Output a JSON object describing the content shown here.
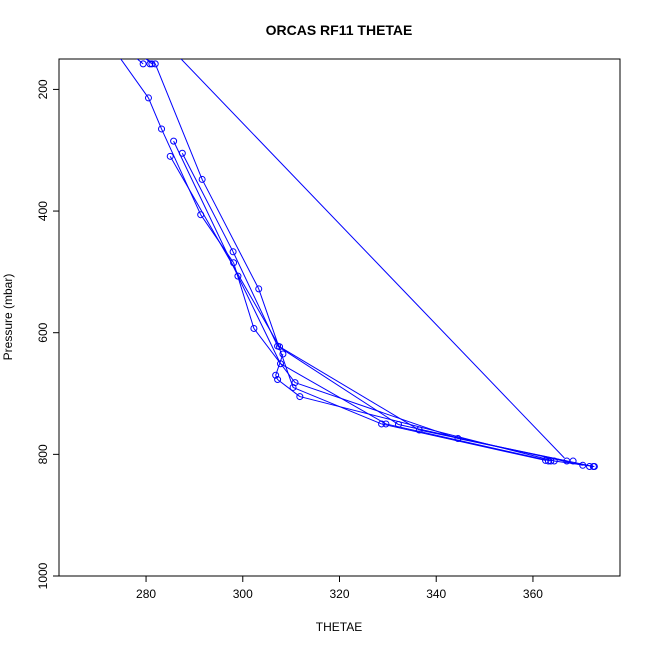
{
  "chart_data": {
    "type": "line",
    "title": "ORCAS RF11 THETAE",
    "xlabel": "THETAE",
    "ylabel": "Pressure (mbar)",
    "xlim": [
      262,
      378
    ],
    "ylim": [
      1000,
      150
    ],
    "y_reversed": true,
    "x_ticks": [
      280,
      300,
      320,
      340,
      360
    ],
    "y_ticks": [
      200,
      400,
      600,
      800,
      1000
    ],
    "series_color": "#0000ff",
    "points": [
      [
        281.9,
        158
      ],
      [
        280.5,
        214
      ],
      [
        283.2,
        265
      ],
      [
        285.7,
        285
      ],
      [
        287.5,
        305
      ],
      [
        285.0,
        310
      ],
      [
        291.6,
        348
      ],
      [
        291.3,
        406
      ],
      [
        298.0,
        467
      ],
      [
        298.1,
        485
      ],
      [
        299.0,
        507
      ],
      [
        303.3,
        528
      ],
      [
        302.3,
        593
      ],
      [
        307.2,
        622
      ],
      [
        307.6,
        623
      ],
      [
        308.3,
        635
      ],
      [
        307.8,
        651
      ],
      [
        306.8,
        670
      ],
      [
        307.2,
        677
      ],
      [
        310.8,
        682
      ],
      [
        310.4,
        690
      ],
      [
        311.8,
        705
      ],
      [
        328.7,
        750
      ],
      [
        329.6,
        750
      ],
      [
        332.2,
        751
      ],
      [
        336.5,
        760
      ],
      [
        344.5,
        774
      ],
      [
        362.6,
        810
      ],
      [
        363.2,
        811
      ],
      [
        363.7,
        811
      ],
      [
        364.4,
        811
      ],
      [
        367.0,
        811
      ],
      [
        368.3,
        811
      ],
      [
        370.3,
        818
      ],
      [
        371.7,
        820
      ],
      [
        372.5,
        820
      ],
      [
        372.7,
        820
      ],
      [
        280.8,
        158
      ],
      [
        279.4,
        158
      ],
      [
        281.2,
        158
      ]
    ],
    "segments": [
      [
        [
          272.5,
          119
        ],
        [
          281.9,
          158
        ]
      ],
      [
        [
          281.9,
          158
        ],
        [
          291.6,
          348
        ]
      ],
      [
        [
          291.6,
          348
        ],
        [
          303.3,
          528
        ]
      ],
      [
        [
          303.3,
          528
        ],
        [
          310.4,
          690
        ]
      ],
      [
        [
          310.4,
          690
        ],
        [
          328.7,
          750
        ]
      ],
      [
        [
          328.7,
          750
        ],
        [
          362.6,
          810
        ]
      ],
      [
        [
          280.5,
          214
        ],
        [
          283.2,
          265
        ]
      ],
      [
        [
          283.2,
          265
        ],
        [
          291.3,
          406
        ]
      ],
      [
        [
          291.3,
          406
        ],
        [
          298.1,
          485
        ]
      ],
      [
        [
          298.1,
          485
        ],
        [
          302.3,
          593
        ]
      ],
      [
        [
          302.3,
          593
        ],
        [
          310.8,
          682
        ]
      ],
      [
        [
          310.8,
          682
        ],
        [
          344.5,
          774
        ]
      ],
      [
        [
          344.5,
          774
        ],
        [
          367.0,
          811
        ]
      ],
      [
        [
          285.7,
          285
        ],
        [
          299.0,
          507
        ]
      ],
      [
        [
          299.0,
          507
        ],
        [
          307.8,
          651
        ]
      ],
      [
        [
          307.8,
          651
        ],
        [
          329.6,
          750
        ]
      ],
      [
        [
          329.6,
          750
        ],
        [
          363.7,
          811
        ]
      ],
      [
        [
          287.5,
          305
        ],
        [
          298.0,
          467
        ]
      ],
      [
        [
          298.0,
          467
        ],
        [
          307.2,
          622
        ]
      ],
      [
        [
          307.2,
          622
        ],
        [
          332.2,
          751
        ]
      ],
      [
        [
          332.2,
          751
        ],
        [
          370.3,
          818
        ]
      ],
      [
        [
          285.0,
          310
        ],
        [
          307.6,
          623
        ]
      ],
      [
        [
          307.6,
          623
        ],
        [
          336.5,
          760
        ]
      ],
      [
        [
          336.5,
          760
        ],
        [
          372.5,
          820
        ]
      ],
      [
        [
          308.3,
          635
        ],
        [
          306.8,
          670
        ]
      ],
      [
        [
          306.8,
          670
        ],
        [
          307.2,
          677
        ]
      ],
      [
        [
          307.2,
          677
        ],
        [
          311.8,
          705
        ]
      ],
      [
        [
          311.8,
          705
        ],
        [
          364.4,
          811
        ]
      ],
      [
        [
          364.4,
          811
        ],
        [
          372.7,
          820
        ]
      ],
      [
        [
          280.5,
          214
        ],
        [
          272.0,
          119
        ]
      ],
      [
        [
          281.2,
          158
        ],
        [
          275.5,
          119
        ]
      ],
      [
        [
          279.4,
          158
        ],
        [
          273.5,
          119
        ]
      ],
      [
        [
          283.5,
          119
        ],
        [
          366.5,
          806
        ]
      ]
    ]
  }
}
